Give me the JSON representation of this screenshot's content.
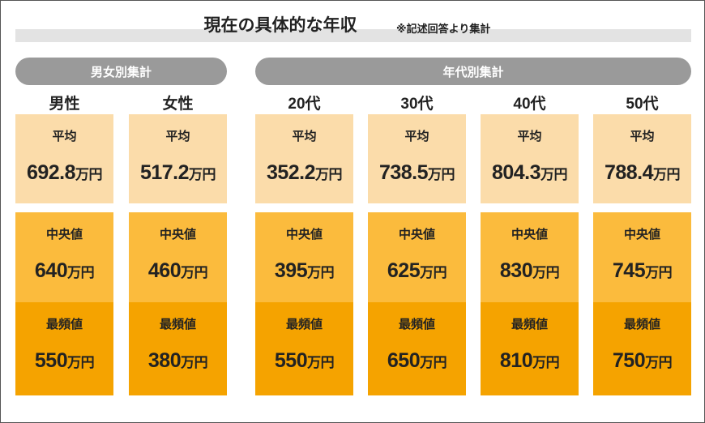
{
  "title": "現在の具体的な年収",
  "note": "※記述回答より集計",
  "unit": "万円",
  "row_labels": [
    "平均",
    "中央値",
    "最頻値"
  ],
  "groups": [
    {
      "label": "男女別集計",
      "columns": [
        {
          "header": "男性",
          "values": [
            692.8,
            640,
            550
          ]
        },
        {
          "header": "女性",
          "values": [
            517.2,
            460,
            380
          ]
        }
      ]
    },
    {
      "label": "年代別集計",
      "columns": [
        {
          "header": "20代",
          "values": [
            352.2,
            395,
            550
          ]
        },
        {
          "header": "30代",
          "values": [
            738.5,
            625,
            650
          ]
        },
        {
          "header": "40代",
          "values": [
            804.3,
            830,
            810
          ]
        },
        {
          "header": "50代",
          "values": [
            788.4,
            745,
            750
          ]
        }
      ]
    }
  ]
}
